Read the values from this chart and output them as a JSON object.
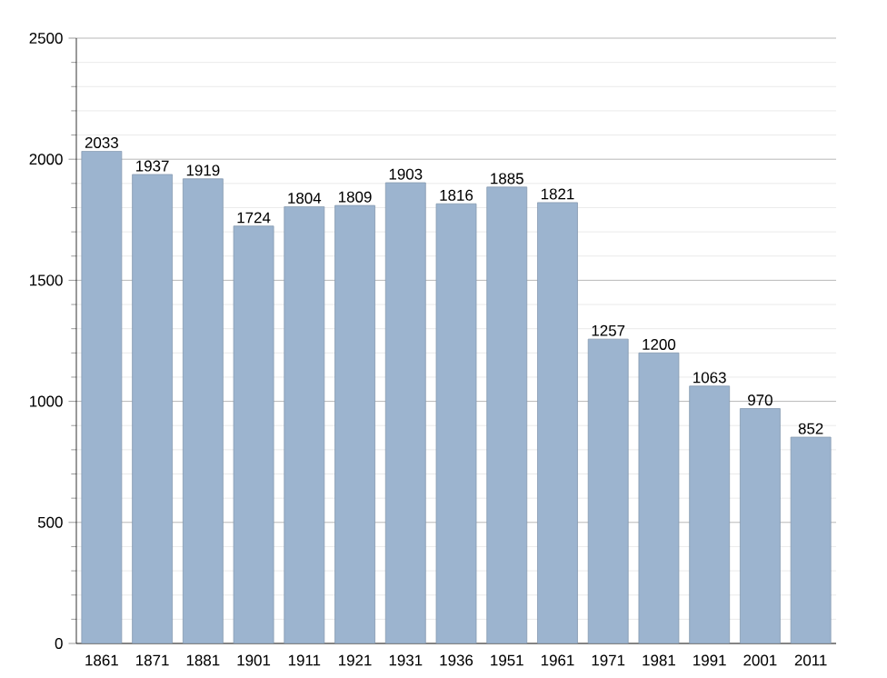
{
  "chart_data": {
    "type": "bar",
    "categories": [
      "1861",
      "1871",
      "1881",
      "1901",
      "1911",
      "1921",
      "1931",
      "1936",
      "1951",
      "1961",
      "1971",
      "1981",
      "1991",
      "2001",
      "2011"
    ],
    "values": [
      2033,
      1937,
      1919,
      1724,
      1804,
      1809,
      1903,
      1816,
      1885,
      1821,
      1257,
      1200,
      1063,
      970,
      852
    ],
    "color": "#9cb4cf",
    "ylim": [
      0,
      2500
    ],
    "yticks": [
      0,
      500,
      1000,
      1500,
      2000,
      2500
    ],
    "grid": "y",
    "data_labels": true
  }
}
